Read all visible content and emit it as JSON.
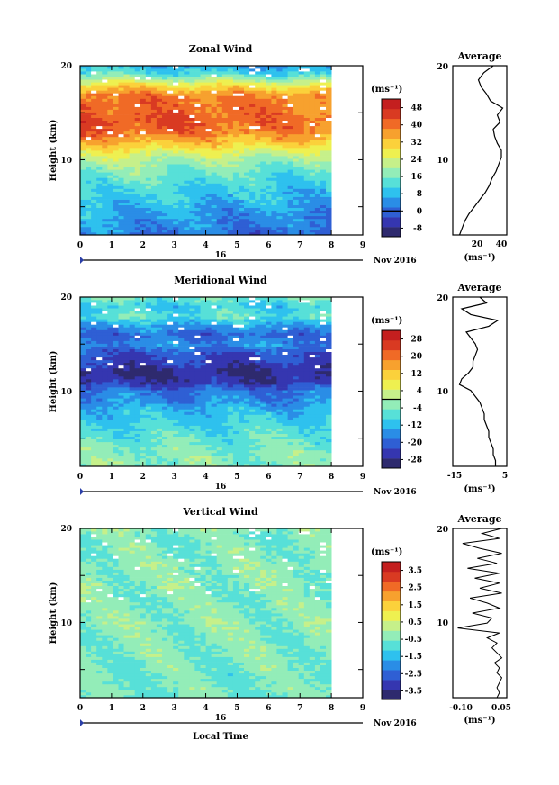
{
  "figure": {
    "x_ticks": [
      "0",
      "1",
      "2",
      "3",
      "4",
      "5",
      "6",
      "7",
      "8",
      "9"
    ],
    "day_label": "16",
    "date_label": "Nov 2016",
    "xlabel": "Local Time",
    "ylabel": "Height (km)",
    "profile_title": "Average",
    "unit_label": "(ms⁻¹)"
  },
  "colors": {
    "scale": [
      "#2e2a6e",
      "#3536b0",
      "#2f5fd4",
      "#2a8de6",
      "#2ec1ee",
      "#57e0d8",
      "#93edb8",
      "#c6f08a",
      "#eef050",
      "#fbd13b",
      "#f7a12e",
      "#f06a26",
      "#d93a22",
      "#c41f1f"
    ]
  },
  "chart_data": [
    {
      "type": "heatmap",
      "name": "zonal",
      "title": "Zonal Wind",
      "xlabel": "",
      "ylabel": "Height (km)",
      "xlim": [
        0,
        9
      ],
      "ylim": [
        2,
        20
      ],
      "y_ticks": [
        "20",
        "10"
      ],
      "data_extent_x": [
        0,
        8
      ],
      "colorbar": {
        "labels": [
          "48",
          "40",
          "32",
          "24",
          "16",
          "8",
          "0",
          "-8"
        ],
        "range": [
          -12,
          52
        ],
        "zero_line": 0
      },
      "height_profile_km": [
        2,
        3,
        4,
        5,
        6,
        7,
        8,
        9,
        10,
        11,
        12,
        13,
        14,
        15,
        16,
        17,
        18,
        19,
        20
      ],
      "wind_profile": [
        3,
        5,
        7,
        9,
        11,
        13,
        15,
        18,
        22,
        28,
        36,
        42,
        44,
        43,
        42,
        40,
        30,
        16,
        8
      ],
      "profile": {
        "xlim": [
          5,
          45
        ],
        "x_ticks": [
          "20",
          "40"
        ],
        "y_ticks": [
          "20",
          "10"
        ],
        "values": [
          10,
          12,
          14,
          17,
          21,
          25,
          29,
          32,
          34,
          37,
          39,
          41,
          41,
          38,
          36,
          35,
          40,
          38,
          42,
          33,
          30,
          26,
          24,
          28,
          35
        ]
      }
    },
    {
      "type": "heatmap",
      "name": "meridional",
      "title": "Meridional Wind",
      "xlabel": "",
      "ylabel": "Height (km)",
      "xlim": [
        0,
        9
      ],
      "ylim": [
        2,
        20
      ],
      "y_ticks": [
        "20",
        "10"
      ],
      "data_extent_x": [
        0,
        8
      ],
      "colorbar": {
        "labels": [
          "28",
          "20",
          "12",
          "4",
          "-4",
          "-12",
          "-20",
          "-28"
        ],
        "range": [
          -32,
          32
        ],
        "zero_line": 0
      },
      "height_profile_km": [
        2,
        3,
        4,
        5,
        6,
        7,
        8,
        9,
        10,
        11,
        12,
        13,
        14,
        15,
        16,
        17,
        18,
        19,
        20
      ],
      "wind_profile": [
        -3,
        -3,
        -4,
        -6,
        -8,
        -10,
        -12,
        -16,
        -18,
        -26,
        -28,
        -24,
        -22,
        -16,
        -20,
        -14,
        -6,
        -10,
        -4
      ],
      "profile": {
        "xlim": [
          -18,
          6
        ],
        "x_ticks": [
          "-15",
          "5"
        ],
        "y_ticks": [
          "20",
          "10"
        ],
        "values": [
          1,
          1,
          0,
          0,
          -1,
          -2,
          -2,
          -3,
          -4,
          -4,
          -5,
          -6,
          -8,
          -10,
          -15,
          -14,
          -11,
          -9,
          -9,
          -8,
          -7,
          -8,
          -10,
          -12,
          -2,
          2,
          -10,
          -14,
          -3,
          -6
        ]
      }
    },
    {
      "type": "heatmap",
      "name": "vertical",
      "title": "Vertical Wind",
      "xlabel": "Local Time",
      "ylabel": "Height (km)",
      "xlim": [
        0,
        9
      ],
      "ylim": [
        2,
        20
      ],
      "y_ticks": [
        "20",
        "10"
      ],
      "data_extent_x": [
        0,
        8
      ],
      "colorbar": {
        "labels": [
          "3.5",
          "2.5",
          "1.5",
          "0.5",
          "-0.5",
          "-1.5",
          "-2.5",
          "-3.5"
        ],
        "range": [
          -4,
          4
        ],
        "zero_line": null
      },
      "height_profile_km": [
        2,
        3,
        4,
        5,
        6,
        7,
        8,
        9,
        10,
        11,
        12,
        13,
        14,
        15,
        16,
        17,
        18,
        19,
        20
      ],
      "wind_profile": [
        -0.6,
        -0.5,
        -0.6,
        -0.5,
        -0.5,
        -0.4,
        -0.5,
        -0.4,
        -0.3,
        -0.4,
        -0.4,
        -0.5,
        -0.3,
        -0.4,
        -0.3,
        -0.5,
        -0.4,
        -0.6,
        -0.3
      ],
      "profile": {
        "xlim": [
          -0.16,
          0.06
        ],
        "x_ticks": [
          "-0.10",
          "0.05"
        ],
        "y_ticks": [
          "20",
          "10"
        ],
        "values": [
          0.02,
          0.03,
          0.02,
          0.03,
          0.04,
          0.02,
          0.03,
          0.01,
          0.04,
          0.02,
          0.0,
          0.02,
          -0.02,
          0.03,
          -0.14,
          -0.02,
          0.0,
          -0.08,
          0.03,
          -0.02,
          -0.09,
          0.04,
          -0.05,
          0.03,
          -0.07,
          0.03,
          -0.1,
          0.02,
          -0.06,
          0.04,
          -0.05,
          -0.12,
          0.03,
          -0.04,
          0.04
        ]
      }
    }
  ]
}
